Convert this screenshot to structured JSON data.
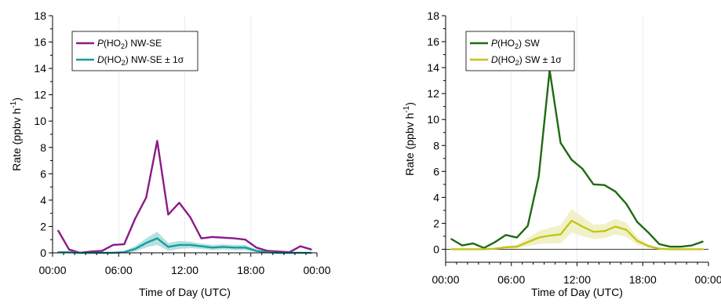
{
  "chart_data": [
    {
      "type": "line",
      "xlabel": "Time of Day (UTC)",
      "ylabel": "Rate (ppbv h-1)",
      "ylabel_parts": {
        "text": "Rate (ppbv h",
        "sup": "-1",
        "close": ")"
      },
      "xlim": [
        0,
        24
      ],
      "ylim": [
        0,
        18
      ],
      "xticks": [
        0,
        6,
        12,
        18,
        24
      ],
      "xtick_labels": [
        "00:00",
        "06:00",
        "12:00",
        "18:00",
        "00:00"
      ],
      "yticks": [
        0,
        2,
        4,
        6,
        8,
        10,
        12,
        14,
        16,
        18
      ],
      "ytick_labels": [
        "0",
        "2",
        "4",
        "6",
        "8",
        "10",
        "12",
        "14",
        "16",
        "18"
      ],
      "vgrid": [
        6,
        12,
        18
      ],
      "legend_position": "top-left",
      "series": [
        {
          "name": "P(HO2) NW-SE",
          "legend": {
            "italic": "P",
            "pre": "(HO",
            "sub": "2",
            "post": ") NW-SE"
          },
          "color": "#8B1A89",
          "x": [
            0.5,
            1.5,
            2.5,
            3.5,
            4.5,
            5.5,
            6.5,
            7.5,
            8.5,
            9.5,
            10.5,
            11.5,
            12.5,
            13.5,
            14.5,
            15.5,
            16.5,
            17.5,
            18.5,
            19.5,
            20.5,
            21.5,
            22.5,
            23.5
          ],
          "values": [
            1.7,
            0.25,
            0.0,
            0.1,
            0.15,
            0.6,
            0.65,
            2.6,
            4.2,
            8.5,
            2.9,
            3.8,
            2.7,
            1.1,
            1.2,
            1.15,
            1.1,
            1.0,
            0.4,
            0.15,
            0.1,
            0.05,
            0.5,
            0.25
          ]
        },
        {
          "name": "D(HO2) NW-SE ± 1σ",
          "legend": {
            "italic": "D",
            "pre": "(HO",
            "sub": "2",
            "post": ") NW-SE ± 1σ"
          },
          "color": "#1A9C9C",
          "band_color": "#A8DCDC",
          "x": [
            0.5,
            1.5,
            2.5,
            3.5,
            4.5,
            5.5,
            6.5,
            7.5,
            8.5,
            9.5,
            10.5,
            11.5,
            12.5,
            13.5,
            14.5,
            15.5,
            16.5,
            17.5,
            18.5,
            19.5,
            20.5,
            21.5,
            22.5,
            23.5
          ],
          "values": [
            0.05,
            0.05,
            0.0,
            0.0,
            0.0,
            0.0,
            0.05,
            0.3,
            0.75,
            1.1,
            0.45,
            0.6,
            0.6,
            0.5,
            0.4,
            0.45,
            0.4,
            0.4,
            0.15,
            0.05,
            0.0,
            0.0,
            0.0,
            0.0
          ],
          "sigma": [
            0.05,
            0.05,
            0.05,
            0.05,
            0.05,
            0.05,
            0.1,
            0.2,
            0.35,
            0.5,
            0.3,
            0.3,
            0.25,
            0.2,
            0.2,
            0.2,
            0.2,
            0.2,
            0.1,
            0.05,
            0.05,
            0.05,
            0.05,
            0.05
          ]
        }
      ]
    },
    {
      "type": "line",
      "xlabel": "Time of Day (UTC)",
      "ylabel": "Rate (ppbv h-1)",
      "ylabel_parts": {
        "text": "Rate (ppbv h",
        "sup": "-1",
        "close": ")"
      },
      "xlim": [
        0,
        24
      ],
      "ylim": [
        -1,
        18
      ],
      "xticks": [
        0,
        6,
        12,
        18,
        24
      ],
      "xtick_labels": [
        "00:00",
        "06:00",
        "12:00",
        "18:00",
        "00:00"
      ],
      "yticks": [
        0,
        2,
        4,
        6,
        8,
        10,
        12,
        14,
        16,
        18
      ],
      "ytick_labels": [
        "0",
        "2",
        "4",
        "6",
        "8",
        "10",
        "12",
        "14",
        "16",
        "18"
      ],
      "vgrid": [
        6,
        12,
        18
      ],
      "zero_line": true,
      "legend_position": "top-left",
      "series": [
        {
          "name": "P(HO2) SW",
          "legend": {
            "italic": "P",
            "pre": "(HO",
            "sub": "2",
            "post": ") SW"
          },
          "color": "#1F6B12",
          "x": [
            0.5,
            1.5,
            2.5,
            3.5,
            4.5,
            5.5,
            6.5,
            7.5,
            8.5,
            9.5,
            10.5,
            11.5,
            12.5,
            13.5,
            14.5,
            15.5,
            16.5,
            17.5,
            18.5,
            19.5,
            20.5,
            21.5,
            22.5,
            23.5
          ],
          "values": [
            0.8,
            0.3,
            0.45,
            0.1,
            0.55,
            1.1,
            0.9,
            1.8,
            5.6,
            13.8,
            8.2,
            6.9,
            6.2,
            5.0,
            4.95,
            4.45,
            3.5,
            2.1,
            1.3,
            0.4,
            0.2,
            0.2,
            0.3,
            0.6
          ]
        },
        {
          "name": "D(HO2) SW ± 1σ",
          "legend": {
            "italic": "D",
            "pre": "(HO",
            "sub": "2",
            "post": ") SW ± 1σ"
          },
          "color": "#C4C41A",
          "band_color": "#EFEFC0",
          "x": [
            0.5,
            1.5,
            2.5,
            3.5,
            4.5,
            5.5,
            6.5,
            7.5,
            8.5,
            9.5,
            10.5,
            11.5,
            12.5,
            13.5,
            14.5,
            15.5,
            16.5,
            17.5,
            18.5,
            19.5,
            20.5,
            21.5,
            22.5,
            23.5
          ],
          "values": [
            0.0,
            0.0,
            0.0,
            0.0,
            0.05,
            0.15,
            0.2,
            0.55,
            0.9,
            1.05,
            1.15,
            2.2,
            1.75,
            1.35,
            1.4,
            1.75,
            1.5,
            0.65,
            0.25,
            0.05,
            0.0,
            0.0,
            0.0,
            0.0
          ],
          "sigma": [
            0.05,
            0.05,
            0.05,
            0.05,
            0.05,
            0.1,
            0.15,
            0.3,
            0.5,
            0.6,
            0.7,
            0.9,
            0.75,
            0.55,
            0.55,
            0.6,
            0.55,
            0.3,
            0.15,
            0.05,
            0.05,
            0.05,
            0.05,
            0.05
          ]
        }
      ]
    }
  ]
}
